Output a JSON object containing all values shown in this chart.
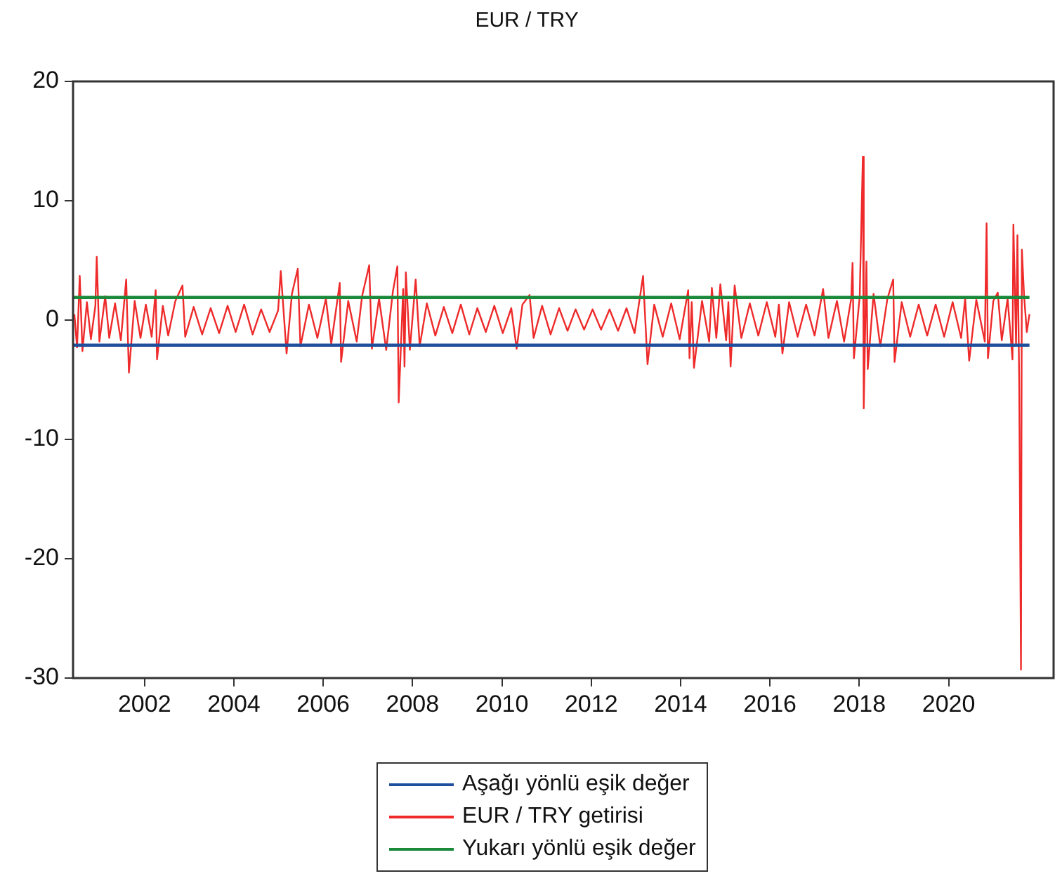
{
  "chart_data": {
    "type": "line",
    "title": "EUR / TRY",
    "legend": "bottom",
    "xlim": [
      2000.4,
      2022.35
    ],
    "xticks": [
      2002,
      2004,
      2006,
      2008,
      2010,
      2012,
      2014,
      2016,
      2018,
      2020
    ],
    "ylim": [
      -30,
      20
    ],
    "yticks": [
      -30,
      -20,
      -10,
      0,
      10,
      20
    ],
    "series": [
      {
        "name": "Aşağı yönlü eşik değer",
        "color": "#1f4e9c",
        "x": [
          2000.4,
          2021.81
        ],
        "values": [
          -2.1,
          -2.1
        ]
      },
      {
        "name": "EUR / TRY getirisi",
        "color": "#ee2a2a",
        "x": [
          2000.43,
          2000.49,
          2000.55,
          2000.61,
          2000.71,
          2000.8,
          2000.9,
          2000.93,
          2000.99,
          2001.12,
          2001.21,
          2001.34,
          2001.47,
          2001.59,
          2001.65,
          2001.78,
          2001.91,
          2002.03,
          2002.16,
          2002.25,
          2002.28,
          2002.41,
          2002.53,
          2002.69,
          2002.85,
          2002.91,
          2003.1,
          2003.29,
          2003.48,
          2003.67,
          2003.86,
          2004.04,
          2004.23,
          2004.42,
          2004.61,
          2004.8,
          2004.99,
          2005.05,
          2005.18,
          2005.3,
          2005.43,
          2005.49,
          2005.68,
          2005.87,
          2006.06,
          2006.18,
          2006.37,
          2006.4,
          2006.56,
          2006.75,
          2006.87,
          2007.03,
          2007.09,
          2007.25,
          2007.41,
          2007.56,
          2007.66,
          2007.69,
          2007.79,
          2007.82,
          2007.85,
          2007.94,
          2008.07,
          2008.16,
          2008.32,
          2008.51,
          2008.7,
          2008.89,
          2009.08,
          2009.27,
          2009.45,
          2009.64,
          2009.83,
          2010.02,
          2010.21,
          2010.33,
          2010.46,
          2010.62,
          2010.71,
          2010.9,
          2011.09,
          2011.28,
          2011.47,
          2011.65,
          2011.84,
          2012.03,
          2012.22,
          2012.41,
          2012.6,
          2012.79,
          2012.97,
          2013.16,
          2013.26,
          2013.41,
          2013.6,
          2013.79,
          2013.98,
          2014.17,
          2014.2,
          2014.25,
          2014.3,
          2014.48,
          2014.64,
          2014.7,
          2014.8,
          2014.89,
          2015.02,
          2015.07,
          2015.12,
          2015.21,
          2015.36,
          2015.55,
          2015.74,
          2015.93,
          2016.12,
          2016.2,
          2016.28,
          2016.43,
          2016.62,
          2016.81,
          2017.0,
          2017.19,
          2017.31,
          2017.5,
          2017.66,
          2017.82,
          2017.85,
          2017.88,
          2018.01,
          2018.08,
          2018.1,
          2018.16,
          2018.19,
          2018.32,
          2018.47,
          2018.63,
          2018.76,
          2018.79,
          2018.95,
          2019.14,
          2019.33,
          2019.52,
          2019.71,
          2019.9,
          2020.09,
          2020.28,
          2020.37,
          2020.46,
          2020.62,
          2020.81,
          2020.85,
          2020.88,
          2021.0,
          2021.1,
          2021.19,
          2021.32,
          2021.43,
          2021.45,
          2021.51,
          2021.54,
          2021.58,
          2021.62,
          2021.64,
          2021.69,
          2021.75,
          2021.81
        ],
        "values": [
          0.5,
          -2.3,
          3.7,
          -2.6,
          1.5,
          -1.6,
          1.2,
          5.3,
          -1.8,
          2.0,
          -1.5,
          1.4,
          -1.7,
          3.4,
          -4.4,
          1.6,
          -1.5,
          1.3,
          -1.4,
          2.5,
          -3.3,
          1.2,
          -1.3,
          1.6,
          2.9,
          -1.4,
          1.1,
          -1.2,
          1.0,
          -1.1,
          1.2,
          -1.0,
          1.3,
          -1.2,
          0.9,
          -1.0,
          0.8,
          4.1,
          -2.8,
          2.2,
          4.3,
          -2.2,
          1.3,
          -1.5,
          1.8,
          -2.0,
          3.1,
          -3.5,
          1.6,
          -1.8,
          2.0,
          4.6,
          -2.4,
          1.8,
          -2.5,
          2.4,
          4.5,
          -6.9,
          2.6,
          -3.9,
          4.0,
          -2.5,
          3.4,
          -2.2,
          1.4,
          -1.3,
          1.1,
          -1.1,
          1.3,
          -1.2,
          1.0,
          -1.0,
          1.2,
          -1.1,
          1.0,
          -2.4,
          1.3,
          2.1,
          -1.5,
          1.2,
          -1.2,
          1.0,
          -0.9,
          0.9,
          -0.8,
          0.9,
          -0.8,
          0.9,
          -0.9,
          1.0,
          -1.1,
          3.7,
          -3.7,
          1.3,
          -1.4,
          1.4,
          -1.6,
          2.5,
          -3.2,
          1.5,
          -4.0,
          1.6,
          -1.8,
          2.7,
          -1.5,
          3.0,
          -1.7,
          1.5,
          -3.9,
          2.9,
          -1.5,
          1.4,
          -1.3,
          1.5,
          -1.4,
          1.3,
          -2.8,
          1.5,
          -1.4,
          1.3,
          -1.3,
          2.6,
          -1.5,
          1.6,
          -1.8,
          1.8,
          4.8,
          -3.2,
          2.0,
          13.7,
          -7.4,
          4.9,
          -4.1,
          2.2,
          -2.2,
          1.8,
          3.4,
          -3.5,
          1.5,
          -1.4,
          1.3,
          -1.3,
          1.3,
          -1.4,
          1.5,
          -1.5,
          1.8,
          -3.4,
          1.7,
          -1.8,
          8.1,
          -3.2,
          1.6,
          2.3,
          -1.7,
          1.8,
          -3.3,
          8.0,
          -2.0,
          7.1,
          -5.1,
          -29.3,
          5.9,
          2.0,
          -1.0,
          0.5
        ]
      },
      {
        "name": "Yukarı yönlü eşik değer",
        "color": "#1a8a3a",
        "x": [
          2000.4,
          2021.81
        ],
        "values": [
          1.9,
          1.9
        ]
      }
    ]
  }
}
